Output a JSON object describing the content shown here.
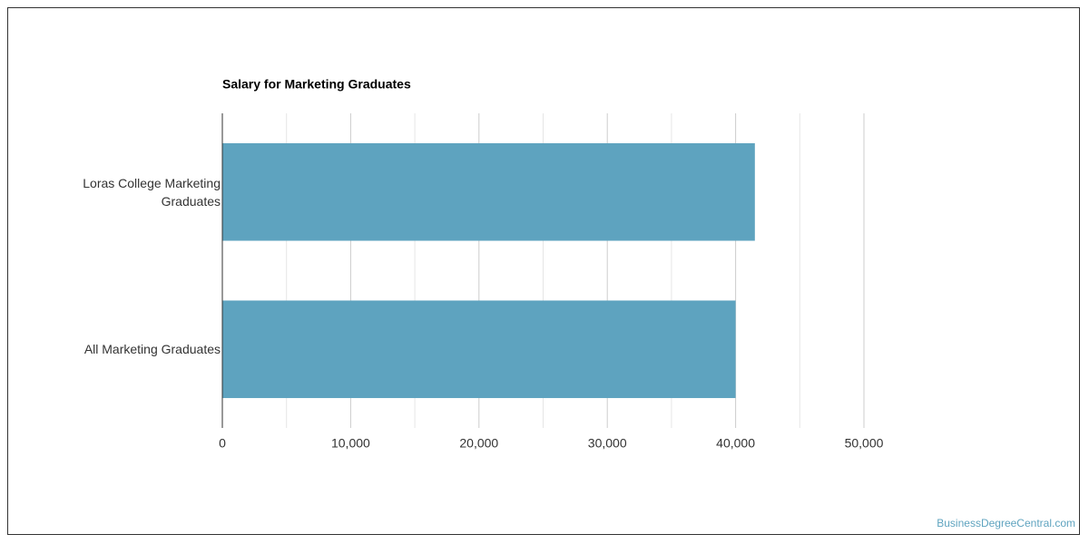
{
  "chart_data": {
    "type": "bar",
    "orientation": "horizontal",
    "title": "Salary for Marketing Graduates",
    "categories": [
      "Loras College Marketing Graduates",
      "All Marketing Graduates"
    ],
    "values": [
      41500,
      40000
    ],
    "color": "#5ea3bf",
    "xlim": [
      0,
      50000
    ],
    "xticks": [
      0,
      {
        "value": 10000,
        "label": "10,000"
      },
      {
        "value": 20000,
        "label": "20,000"
      },
      {
        "value": 30000,
        "label": "30,000"
      },
      {
        "value": 40000,
        "label": "40,000"
      },
      {
        "value": 50000,
        "label": "50,000"
      }
    ],
    "minor_gridlines": [
      5000,
      15000,
      25000,
      35000,
      45000
    ],
    "grid": true
  },
  "footer": {
    "source": "BusinessDegreeCentral.com"
  }
}
